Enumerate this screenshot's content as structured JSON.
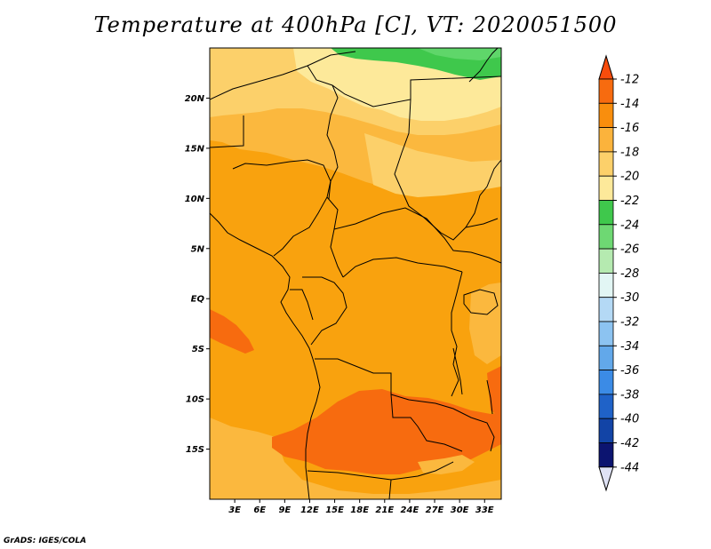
{
  "title": "Temperature at 400hPa [C], VT: 2020051500",
  "credit": "GrADS: IGES/COLA",
  "map": {
    "lon_range": [
      0,
      35
    ],
    "lat_range": [
      -20,
      25
    ],
    "lon_ticks": [
      {
        "v": 3,
        "label": "3E"
      },
      {
        "v": 6,
        "label": "6E"
      },
      {
        "v": 9,
        "label": "9E"
      },
      {
        "v": 12,
        "label": "12E"
      },
      {
        "v": 15,
        "label": "15E"
      },
      {
        "v": 18,
        "label": "18E"
      },
      {
        "v": 21,
        "label": "21E"
      },
      {
        "v": 24,
        "label": "24E"
      },
      {
        "v": 27,
        "label": "27E"
      },
      {
        "v": 30,
        "label": "30E"
      },
      {
        "v": 33,
        "label": "33E"
      }
    ],
    "lat_ticks": [
      {
        "v": 20,
        "label": "20N"
      },
      {
        "v": 15,
        "label": "15N"
      },
      {
        "v": 10,
        "label": "10N"
      },
      {
        "v": 5,
        "label": "5N"
      },
      {
        "v": 0,
        "label": "EQ"
      },
      {
        "v": -5,
        "label": "5S"
      },
      {
        "v": -10,
        "label": "10S"
      },
      {
        "v": -15,
        "label": "15S"
      }
    ],
    "fill_colors": {
      "orange_deep": "#f76b0f",
      "orange": "#f9a20e",
      "orange_light": "#fbb83e",
      "yellow_orange": "#fcd06a",
      "pale_yellow": "#fde99a",
      "green": "#3fc84c",
      "light_green": "#5fd66a"
    }
  },
  "colorbar": {
    "labels": [
      "-12",
      "-14",
      "-16",
      "-18",
      "-20",
      "-22",
      "-24",
      "-26",
      "-28",
      "-30",
      "-32",
      "-34",
      "-36",
      "-38",
      "-40",
      "-42",
      "-44"
    ],
    "colors": [
      "#f74c0c",
      "#f76b0f",
      "#f98e0d",
      "#fbb33c",
      "#fcd06a",
      "#fde99a",
      "#3fc84c",
      "#6ed873",
      "#b5eab0",
      "#e2f6f4",
      "#b4d9f5",
      "#8cc3f1",
      "#62a8ea",
      "#3b8be6",
      "#1f62c8",
      "#1244a6",
      "#0c1470",
      "#dfe2f5"
    ]
  }
}
